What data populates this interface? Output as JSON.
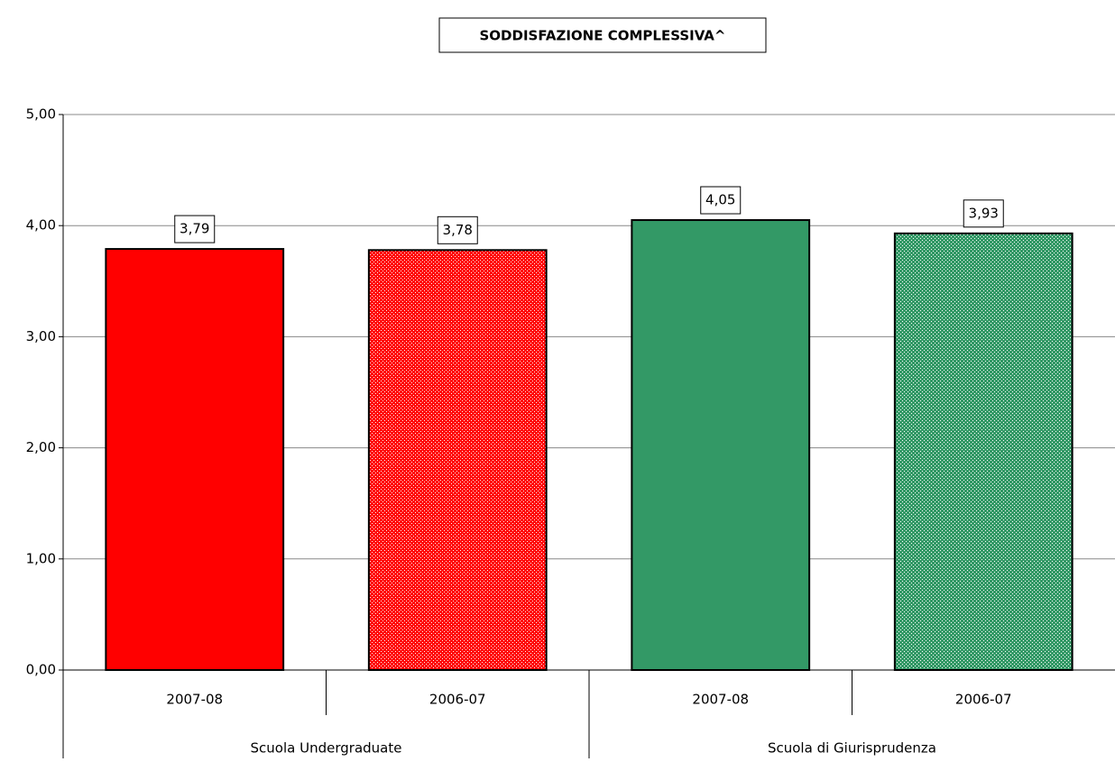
{
  "chart_data": {
    "type": "bar",
    "title": "SODDISFAZIONE COMPLESSIVA^",
    "categories": [
      "2007-08",
      "2006-07",
      "2007-08",
      "2006-07"
    ],
    "groups": [
      "Scuola Undergraduate",
      "Scuola di Giurisprudenza"
    ],
    "values": [
      3.79,
      3.78,
      4.05,
      3.93
    ],
    "value_labels": [
      "3,79",
      "3,78",
      "4,05",
      "3,93"
    ],
    "colors": [
      "#ff0000",
      "#ff0000",
      "#339966",
      "#339966"
    ],
    "patterned": [
      false,
      true,
      false,
      true
    ],
    "ylim": [
      0,
      5
    ],
    "yticks": [
      {
        "value": 0,
        "label": "0,00"
      },
      {
        "value": 1,
        "label": "1,00"
      },
      {
        "value": 2,
        "label": "2,00"
      },
      {
        "value": 3,
        "label": "3,00"
      },
      {
        "value": 4,
        "label": "4,00"
      },
      {
        "value": 5,
        "label": "5,00"
      }
    ],
    "grid": true
  }
}
